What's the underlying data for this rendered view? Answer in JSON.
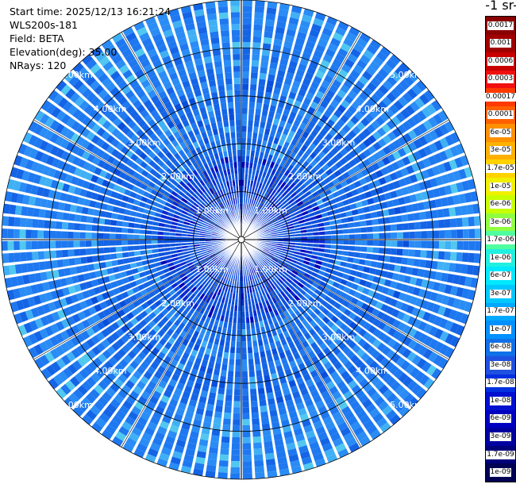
{
  "header": {
    "start_time": "Start time: 2025/12/13 16:21:24",
    "instrument": "WLS200s-181",
    "field": "Field: BETA",
    "elevation": "Elevation(deg): 35.00",
    "nrays": "NRays: 120"
  },
  "colorbar": {
    "unit_label": "-1 sr-",
    "ticks": [
      "0.0017",
      "0.001",
      "0.0006",
      "0.0003",
      "0.00017",
      "0.0001",
      "6e-05",
      "3e-05",
      "1.7e-05",
      "1e-05",
      "6e-06",
      "3e-06",
      "1.7e-06",
      "1e-06",
      "6e-07",
      "3e-07",
      "1.7e-07",
      "1e-07",
      "6e-08",
      "3e-08",
      "1.7e-08",
      "1e-08",
      "6e-09",
      "3e-09",
      "1.7e-09",
      "1e-09"
    ],
    "colors": [
      "#8a0000",
      "#a00000",
      "#c80000",
      "#f01010",
      "#ff3a00",
      "#ff6000",
      "#ff9000",
      "#ffb000",
      "#ffd200",
      "#f0f000",
      "#c8ff00",
      "#90ff40",
      "#50ffa0",
      "#20f0e0",
      "#00e8ff",
      "#00c8ff",
      "#00a8ff",
      "#0090ff",
      "#1070e8",
      "#2050e0",
      "#0030e0",
      "#0010d0",
      "#0000c0",
      "#0000a0",
      "#00007a",
      "#000055"
    ]
  },
  "ppi": {
    "range_labels": [
      "1.00km",
      "2.00km",
      "3.00km",
      "4.00km",
      "5.00km"
    ],
    "rings_km": [
      1,
      2,
      3,
      4,
      5
    ],
    "max_range_km": 5.0,
    "ray_count": 120,
    "palette": [
      "#1464e6",
      "#1e78f0",
      "#0a4fdc",
      "#2a8cf5",
      "#40b0f5",
      "#0a28d2",
      "#50c8f0",
      "#0000b8"
    ]
  }
}
